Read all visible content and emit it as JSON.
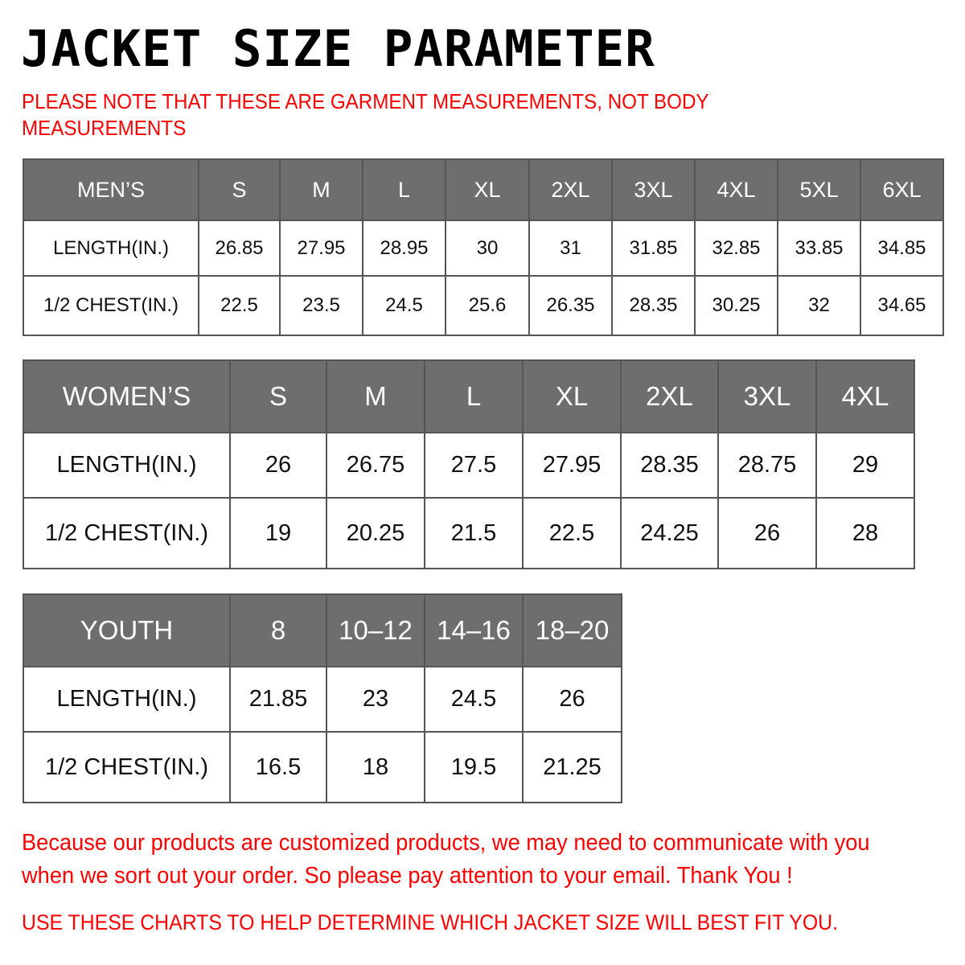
{
  "title": "JACKET SIZE PARAMETER",
  "note": "PLEASE NOTE THAT THESE ARE GARMENT MEASUREMENTS, NOT BODY MEASUREMENTS",
  "colors": {
    "header_bg": "#6e6e6e",
    "accent_text": "#ff0000"
  },
  "tables": {
    "men": {
      "header": [
        "MEN’S",
        "S",
        "M",
        "L",
        "XL",
        "2XL",
        "3XL",
        "4XL",
        "5XL",
        "6XL"
      ],
      "rows": [
        [
          "LENGTH(IN.)",
          "26.85",
          "27.95",
          "28.95",
          "30",
          "31",
          "31.85",
          "32.85",
          "33.85",
          "34.85"
        ],
        [
          "1/2 CHEST(IN.)",
          "22.5",
          "23.5",
          "24.5",
          "25.6",
          "26.35",
          "28.35",
          "30.25",
          "32",
          "34.65"
        ]
      ]
    },
    "women": {
      "header": [
        "WOMEN’S",
        "S",
        "M",
        "L",
        "XL",
        "2XL",
        "3XL",
        "4XL"
      ],
      "rows": [
        [
          "LENGTH(IN.)",
          "26",
          "26.75",
          "27.5",
          "27.95",
          "28.35",
          "28.75",
          "29"
        ],
        [
          "1/2 CHEST(IN.)",
          "19",
          "20.25",
          "21.5",
          "22.5",
          "24.25",
          "26",
          "28"
        ]
      ]
    },
    "youth": {
      "header": [
        "YOUTH",
        "8",
        "10–12",
        "14–16",
        "18–20"
      ],
      "rows": [
        [
          "LENGTH(IN.)",
          "21.85",
          "23",
          "24.5",
          "26"
        ],
        [
          "1/2 CHEST(IN.)",
          "16.5",
          "18",
          "19.5",
          "21.25"
        ]
      ]
    }
  },
  "footer": {
    "message": "Because our products are customized products, we may need to communicate with you when we sort out your order. So please pay attention to your email. Thank You !",
    "instruction": "USE THESE CHARTS TO HELP DETERMINE WHICH JACKET SIZE WILL BEST FIT YOU."
  }
}
